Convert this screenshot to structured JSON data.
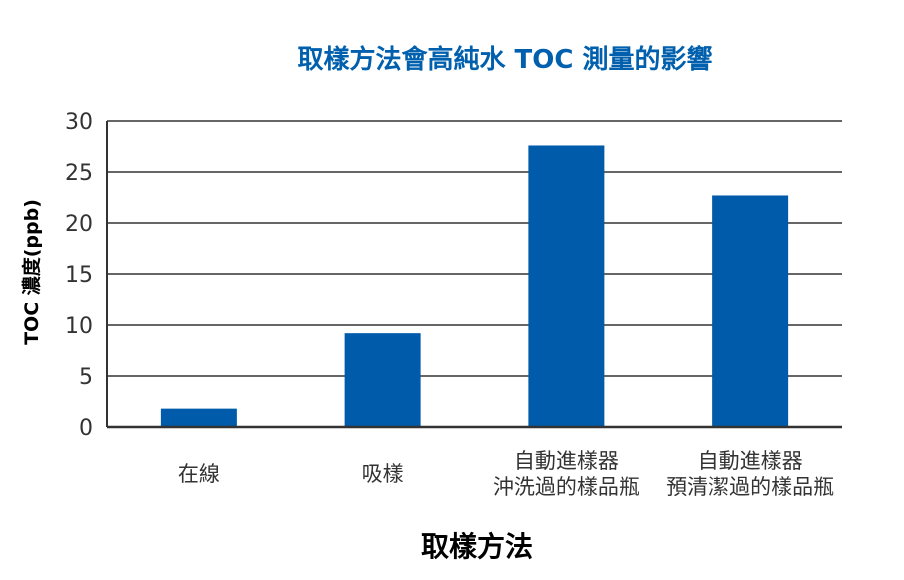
{
  "chart_data": {
    "type": "bar",
    "title": "取樣方法會高純水 TOC 測量的影響",
    "xlabel": "取樣方法",
    "ylabel": "TOC 濃度(ppb)",
    "categories": [
      [
        "在線"
      ],
      [
        "吸樣"
      ],
      [
        "自動進樣器",
        "沖洗過的樣品瓶"
      ],
      [
        "自動進樣器",
        "預清潔過的樣品瓶"
      ]
    ],
    "values": [
      1.8,
      9.2,
      27.6,
      22.7
    ],
    "ylim": [
      0,
      30
    ],
    "yticks": [
      0,
      5,
      10,
      15,
      20,
      25,
      30
    ],
    "grid": true,
    "colors": {
      "bar": "#005BAA",
      "title": "#0060AE",
      "text": "#333333",
      "grid": "#333333"
    }
  }
}
